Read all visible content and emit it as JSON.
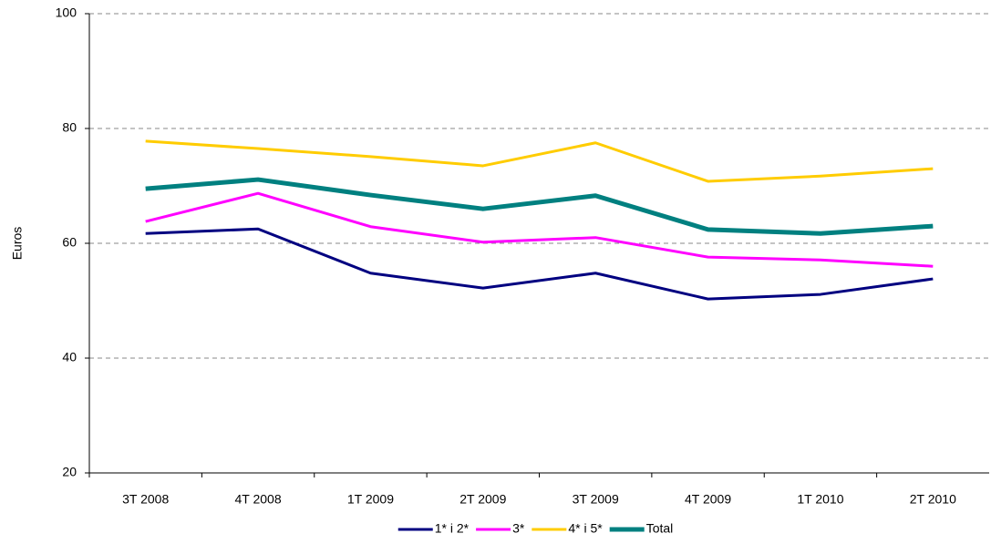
{
  "chart_data": {
    "type": "line",
    "y_label": "Euros",
    "categories": [
      "3T 2008",
      "4T 2008",
      "1T 2009",
      "2T 2009",
      "3T 2009",
      "4T 2009",
      "1T 2010",
      "2T 2010"
    ],
    "series": [
      {
        "name": "1* i 2*",
        "color": "#000080",
        "values": [
          61.7,
          62.5,
          54.8,
          52.2,
          54.8,
          50.3,
          51.1,
          53.8
        ]
      },
      {
        "name": "3*",
        "color": "#ff00ff",
        "values": [
          63.8,
          68.7,
          62.9,
          60.2,
          61.0,
          57.6,
          57.1,
          56.0
        ]
      },
      {
        "name": "4* i 5*",
        "color": "#ffcc00",
        "values": [
          77.8,
          76.5,
          75.1,
          73.5,
          77.5,
          70.8,
          71.7,
          73.0
        ]
      },
      {
        "name": "Total",
        "color": "#008080",
        "values": [
          69.5,
          71.1,
          68.4,
          66.0,
          68.3,
          62.4,
          61.7,
          63.0
        ]
      }
    ],
    "ylim": [
      20,
      100
    ],
    "yticks": [
      20,
      40,
      60,
      80,
      100
    ],
    "grid": true,
    "legend": "bottom"
  }
}
